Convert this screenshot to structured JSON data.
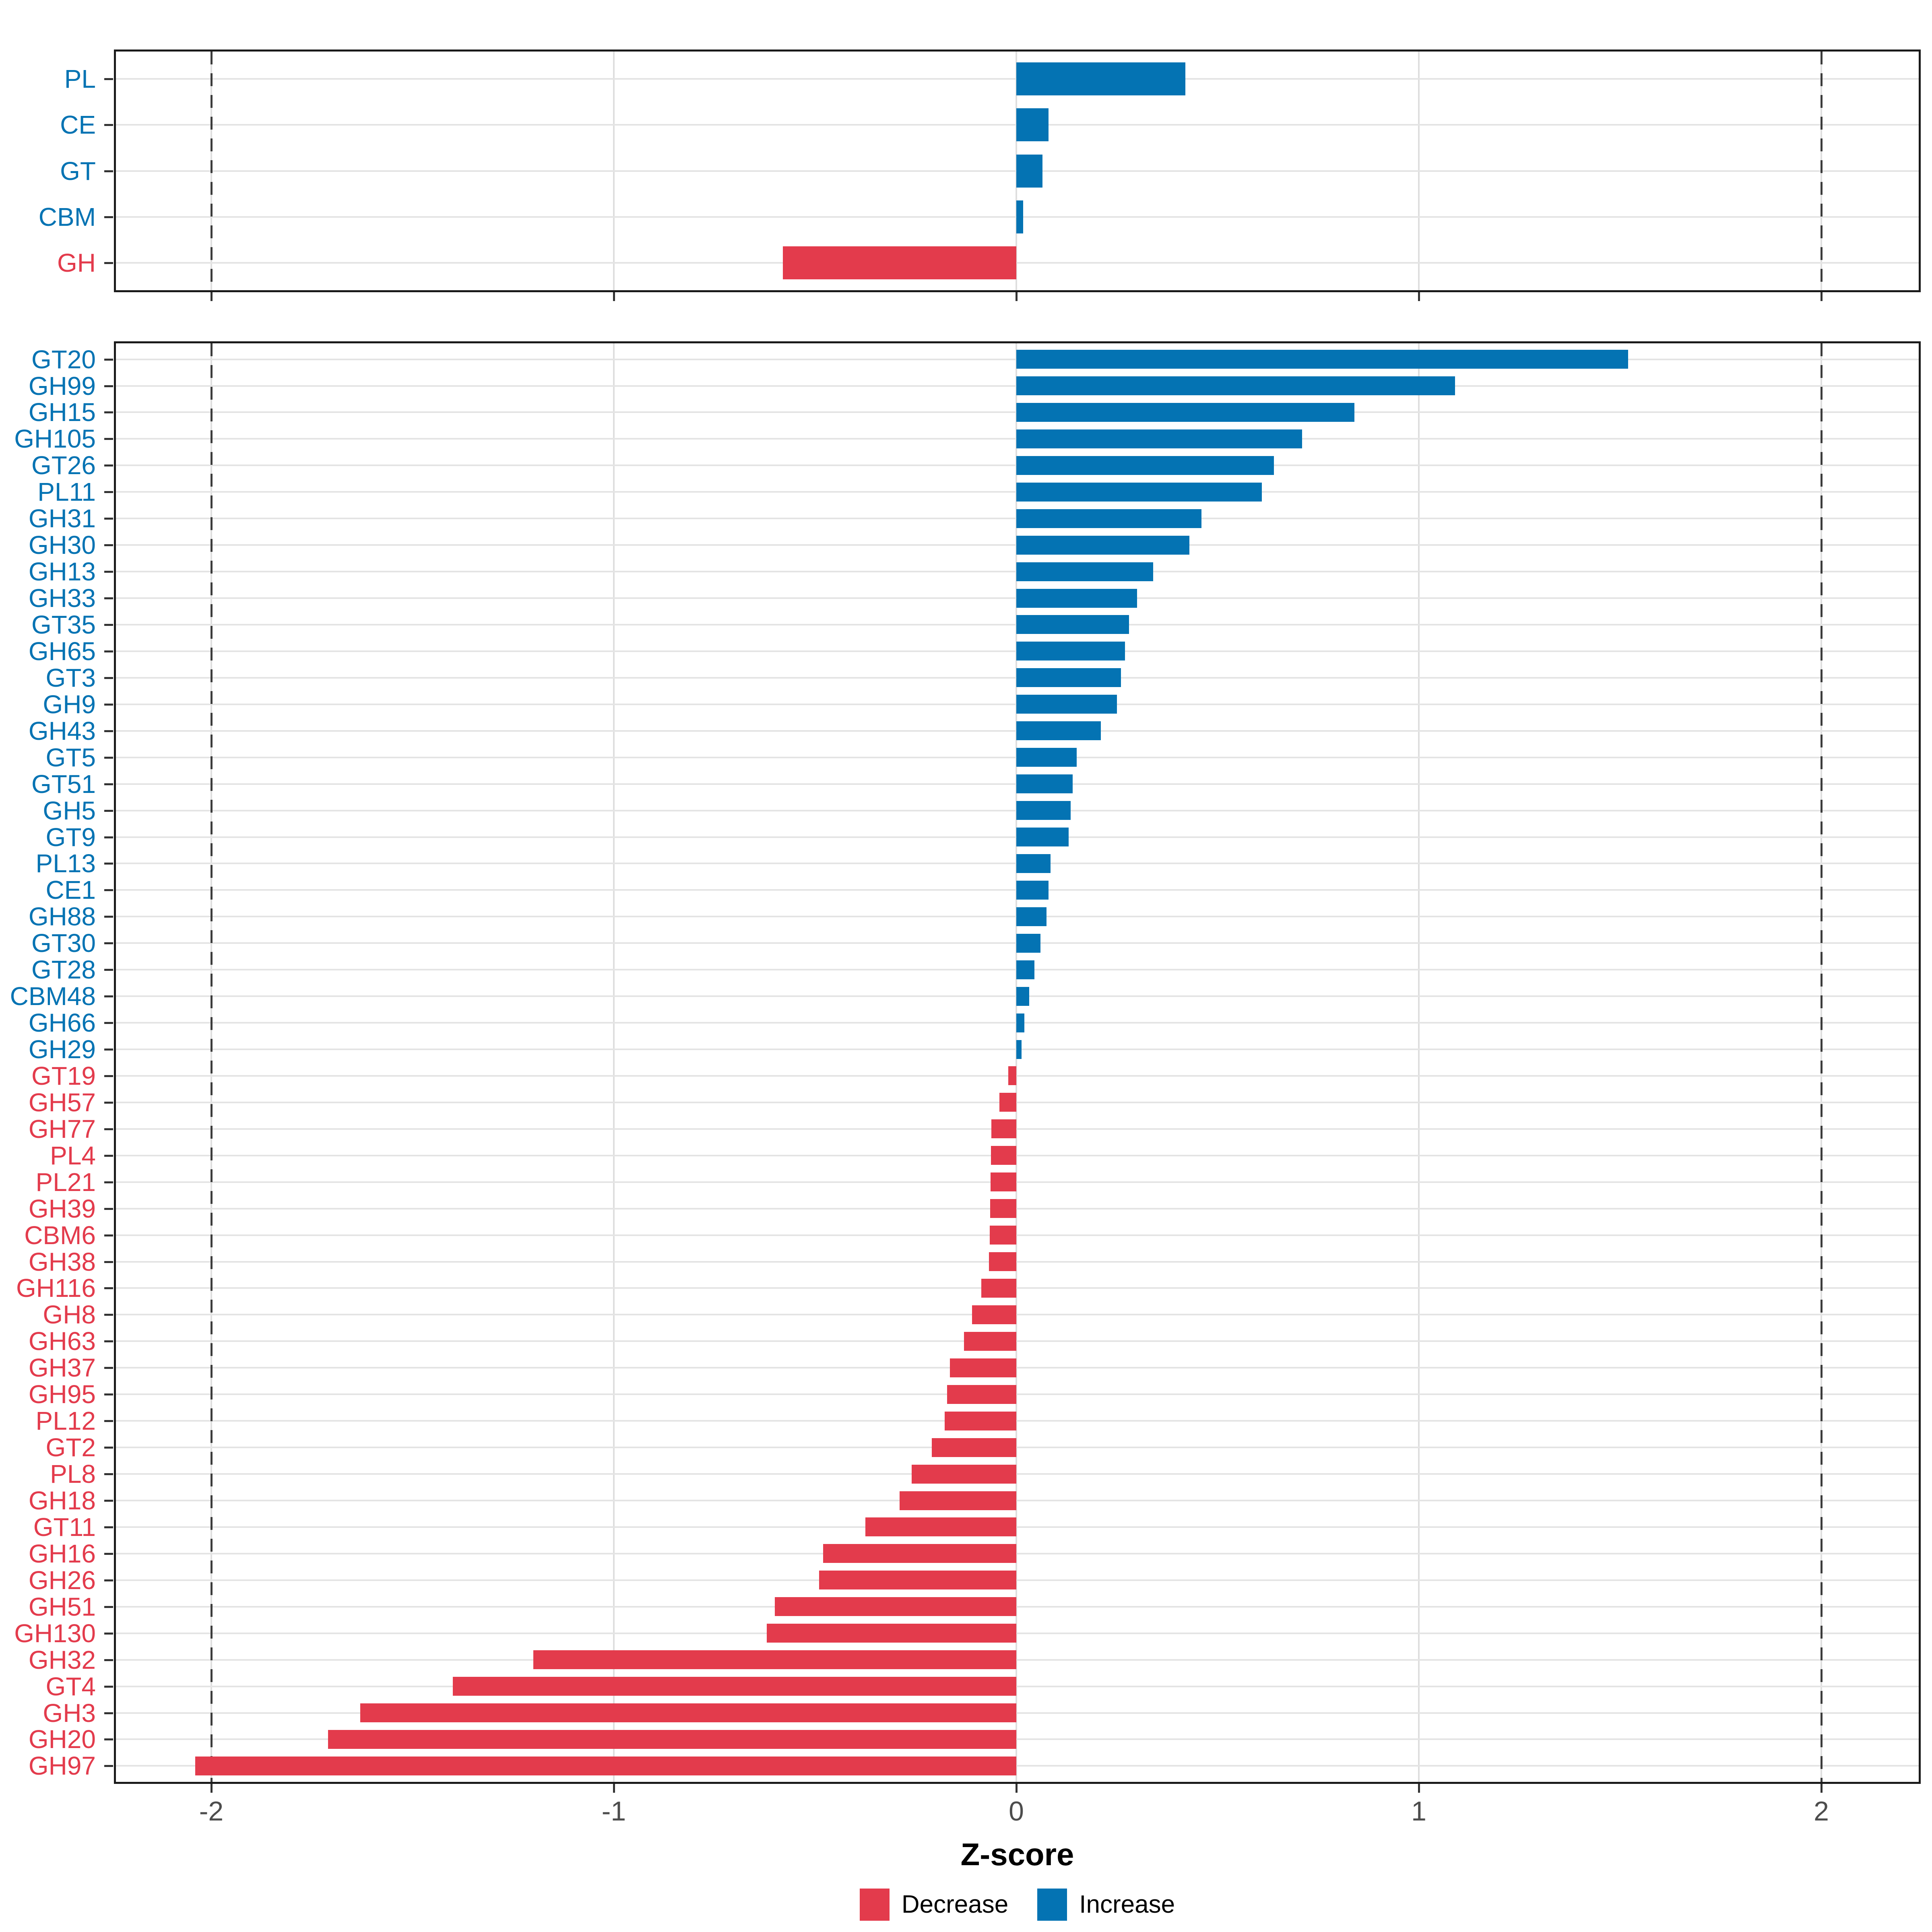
{
  "chart_data": {
    "type": "bar",
    "orientation": "horizontal",
    "xlabel": "Z-score",
    "xlim": [
      -2.24,
      2.25
    ],
    "x_ticks": [
      -2,
      -1,
      0,
      1,
      2
    ],
    "x_tick_labels": [
      "-2",
      "-1",
      "0",
      "1",
      "2"
    ],
    "reference_lines_x": [
      -2,
      2
    ],
    "grid": "major",
    "legend_position": "bottom",
    "colors": {
      "increase": "#0473B3",
      "decrease": "#E33B4C"
    },
    "legend": [
      {
        "key": "decrease",
        "label": "Decrease"
      },
      {
        "key": "increase",
        "label": "Increase"
      }
    ],
    "panels": [
      {
        "name": "cazyme-classes",
        "categories": [
          "PL",
          "CE",
          "GT",
          "CBM",
          "GH"
        ],
        "values": [
          0.42,
          0.08,
          0.065,
          0.017,
          -0.58
        ]
      },
      {
        "name": "cazyme-families",
        "categories": [
          "GT20",
          "GH99",
          "GH15",
          "GH105",
          "GT26",
          "PL11",
          "GH31",
          "GH30",
          "GH13",
          "GH33",
          "GT35",
          "GH65",
          "GT3",
          "GH9",
          "GH43",
          "GT5",
          "GT51",
          "GH5",
          "GT9",
          "PL13",
          "CE1",
          "GH88",
          "GT30",
          "GT28",
          "CBM48",
          "GH66",
          "GH29",
          "GT19",
          "GH57",
          "GH77",
          "PL4",
          "PL21",
          "GH39",
          "CBM6",
          "GH38",
          "GH116",
          "GH8",
          "GH63",
          "GH37",
          "GH95",
          "PL12",
          "GT2",
          "PL8",
          "GH18",
          "GT11",
          "GH16",
          "GH26",
          "GH51",
          "GH130",
          "GH32",
          "GT4",
          "GH3",
          "GH20",
          "GH97"
        ],
        "values": [
          1.52,
          1.09,
          0.84,
          0.71,
          0.64,
          0.61,
          0.46,
          0.43,
          0.34,
          0.3,
          0.28,
          0.27,
          0.26,
          0.25,
          0.21,
          0.15,
          0.14,
          0.135,
          0.13,
          0.085,
          0.08,
          0.075,
          0.06,
          0.045,
          0.032,
          0.02,
          0.013,
          -0.02,
          -0.042,
          -0.062,
          -0.063,
          -0.064,
          -0.065,
          -0.066,
          -0.068,
          -0.087,
          -0.11,
          -0.13,
          -0.165,
          -0.172,
          -0.178,
          -0.21,
          -0.26,
          -0.29,
          -0.375,
          -0.48,
          -0.49,
          -0.6,
          -0.62,
          -1.2,
          -1.4,
          -1.63,
          -1.71,
          -2.04
        ]
      }
    ]
  },
  "axis": {
    "title": "Z-score"
  },
  "legend": {
    "decrease_label": "Decrease",
    "increase_label": "Increase"
  }
}
